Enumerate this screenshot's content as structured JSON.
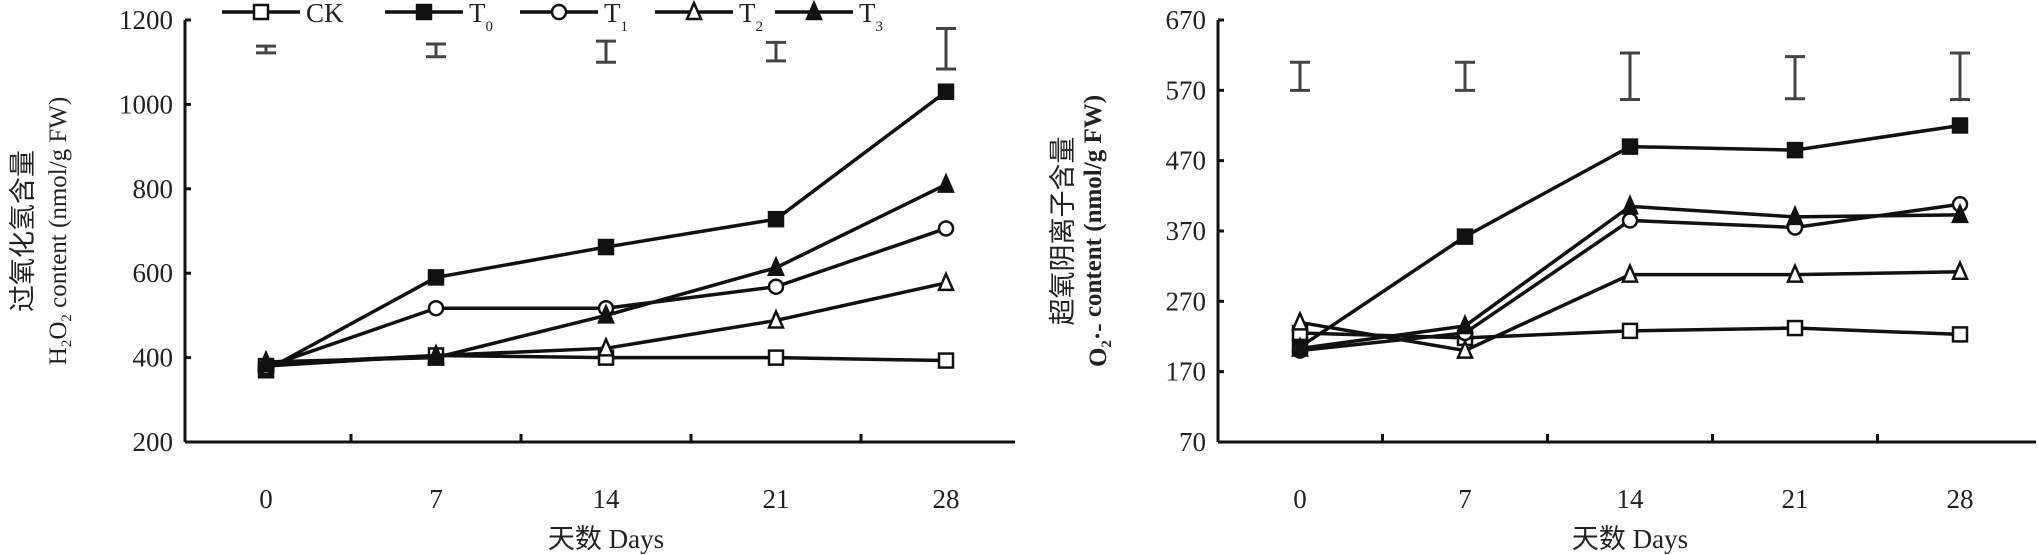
{
  "legend": [
    {
      "name": "CK",
      "sub": "",
      "marker": "square-open"
    },
    {
      "name": "T",
      "sub": "0",
      "marker": "square-filled"
    },
    {
      "name": "T",
      "sub": "1",
      "marker": "circle-open"
    },
    {
      "name": "T",
      "sub": "2",
      "marker": "triangle-open"
    },
    {
      "name": "T",
      "sub": "3",
      "marker": "triangle-filled"
    }
  ],
  "chart_data": [
    {
      "type": "line",
      "ylabel_cn": "过氧化氢含量",
      "ylabel_en": "H2O2 content (nmol/g FW)",
      "ylabel_parts": [
        "H",
        "2",
        "O",
        "2",
        " content (nmol/g FW)"
      ],
      "xlabel": "天数 Days",
      "x": [
        0,
        7,
        14,
        21,
        28
      ],
      "xticks": [
        "0",
        "7",
        "14",
        "21",
        "28"
      ],
      "ylim": [
        200,
        1200
      ],
      "yticks": [
        "200",
        "400",
        "600",
        "800",
        "1000",
        "1200"
      ],
      "series": [
        {
          "name": "CK",
          "values": [
            380,
            405,
            400,
            400,
            393
          ]
        },
        {
          "name": "T0",
          "values": [
            370,
            590,
            662,
            728,
            1030
          ]
        },
        {
          "name": "T1",
          "values": [
            378,
            517,
            517,
            568,
            706
          ]
        },
        {
          "name": "T2",
          "values": [
            385,
            405,
            422,
            488,
            577
          ]
        },
        {
          "name": "T3",
          "values": [
            390,
            400,
            500,
            613,
            810
          ]
        }
      ],
      "error_bars": [
        {
          "center": 1130,
          "half": 8
        },
        {
          "center": 1128,
          "half": 15
        },
        {
          "center": 1125,
          "half": 25
        },
        {
          "center": 1125,
          "half": 22
        },
        {
          "center": 1132,
          "half": 48
        }
      ]
    },
    {
      "type": "line",
      "ylabel_cn": "超氧阴离子含量",
      "ylabel_en": "O2·- content (nmol/g FW)",
      "ylabel_parts": [
        "O",
        "2",
        "·-",
        "",
        " content (nmol/g FW)"
      ],
      "xlabel": "天数 Days",
      "x": [
        0,
        7,
        14,
        21,
        28
      ],
      "xticks": [
        "0",
        "7",
        "14",
        "21",
        "28"
      ],
      "ylim": [
        70,
        670
      ],
      "yticks": [
        "70",
        "170",
        "270",
        "370",
        "470",
        "570",
        "670"
      ],
      "series": [
        {
          "name": "CK",
          "values": [
            225,
            218,
            228,
            232,
            223
          ]
        },
        {
          "name": "T0",
          "values": [
            205,
            362,
            490,
            485,
            520
          ]
        },
        {
          "name": "T1",
          "values": [
            200,
            225,
            385,
            375,
            408
          ]
        },
        {
          "name": "T2",
          "values": [
            240,
            200,
            308,
            308,
            312
          ]
        },
        {
          "name": "T3",
          "values": [
            203,
            235,
            405,
            390,
            393
          ]
        }
      ],
      "error_bars": [
        {
          "center": 590,
          "half": 20
        },
        {
          "center": 590,
          "half": 20
        },
        {
          "center": 590,
          "half": 33
        },
        {
          "center": 588,
          "half": 30
        },
        {
          "center": 590,
          "half": 33
        }
      ]
    }
  ]
}
